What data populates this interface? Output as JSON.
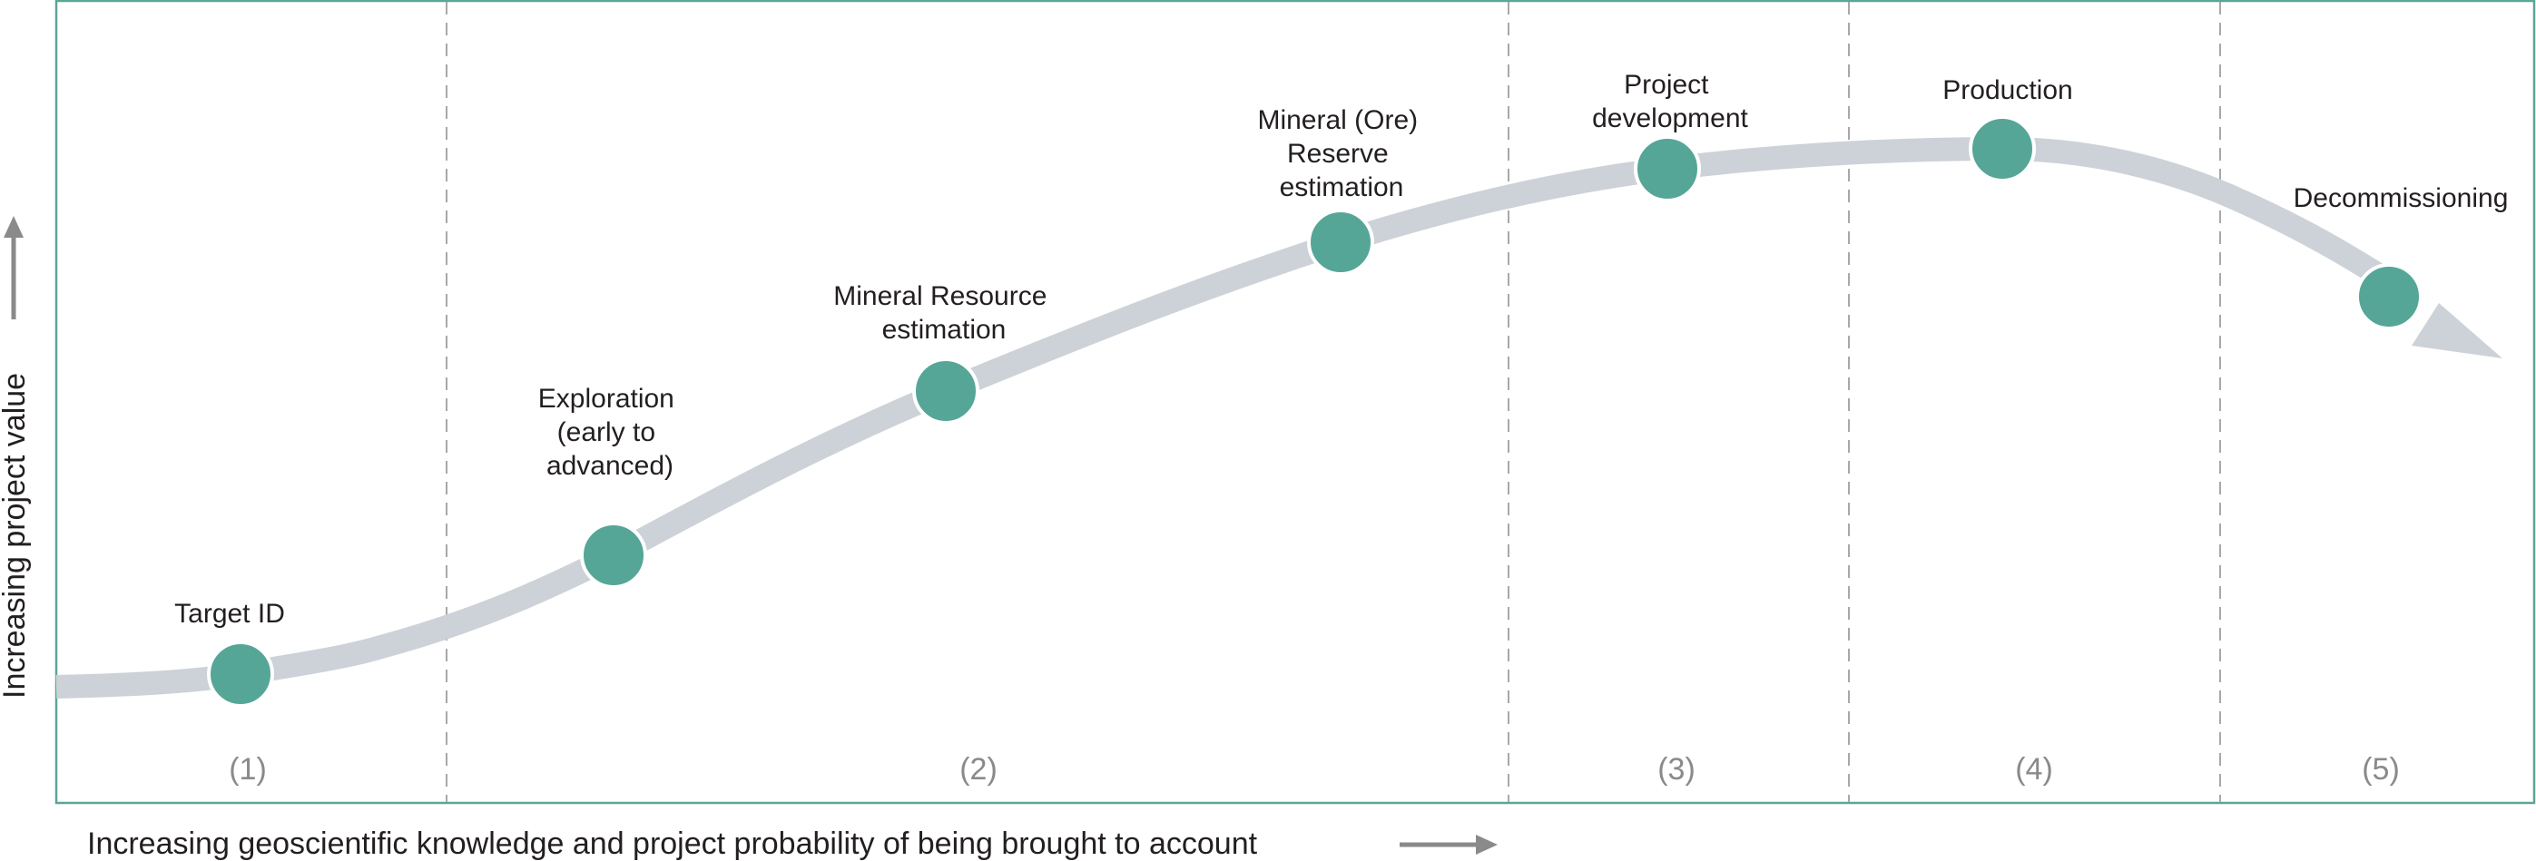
{
  "colors": {
    "frame": "#5aa697",
    "curve": "#cdd2d8",
    "node": "#55a696",
    "node_stroke": "#ffffff",
    "divider": "#a8a8a8",
    "axis_arrow": "#8a8a8a"
  },
  "stages": [
    {
      "lines": [
        "Target ID"
      ]
    },
    {
      "lines": [
        "Exploration",
        "(early to",
        "advanced)"
      ]
    },
    {
      "lines": [
        "Mineral Resource",
        "estimation"
      ]
    },
    {
      "lines": [
        "Mineral (Ore)",
        "Reserve",
        "estimation"
      ]
    },
    {
      "lines": [
        "Project",
        "development"
      ]
    },
    {
      "lines": [
        "Production"
      ]
    },
    {
      "lines": [
        "Decommissioning"
      ]
    }
  ],
  "phases": [
    "(1)",
    "(2)",
    "(3)",
    "(4)",
    "(5)"
  ],
  "axes": {
    "x_label": "Increasing geoscientific knowledge and project probability of being brought to account",
    "y_label": "Increasing project value"
  }
}
